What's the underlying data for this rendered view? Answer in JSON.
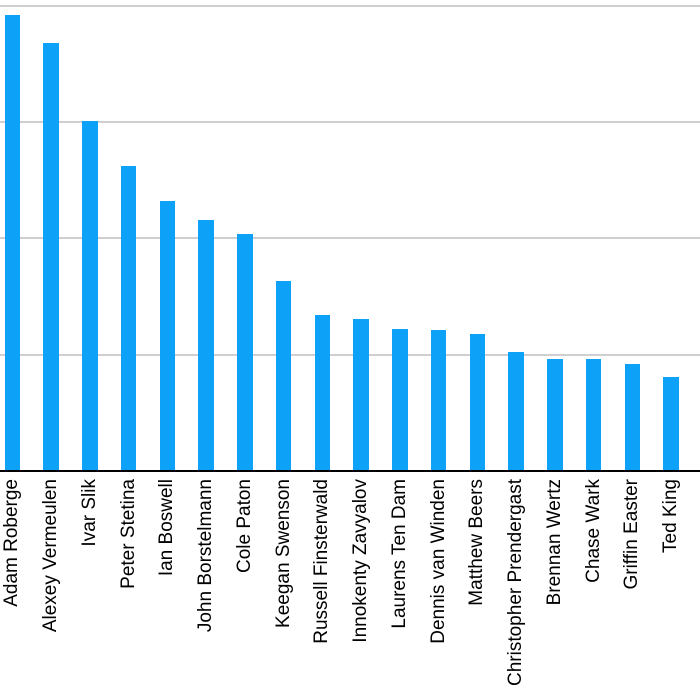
{
  "chart_data": {
    "type": "bar",
    "title": "",
    "xlabel": "",
    "ylabel": "",
    "categories": [
      "Adam Roberge",
      "Alexey Vermeulen",
      "Ivar Slik",
      "Peter Stetina",
      "Ian Boswell",
      "John Borstelmann",
      "Cole Paton",
      "Keegan Swenson",
      "Russell Finsterwald",
      "Innokenty Zavyalov",
      "Laurens Ten Dam",
      "Dennis van Winden",
      "Matthew Beers",
      "Christopher Prendergast",
      "Brennan Wertz",
      "Chase Wark",
      "Griffin Easter",
      "Ted King"
    ],
    "values": [
      3.92,
      3.68,
      3.01,
      2.62,
      2.32,
      2.16,
      2.04,
      1.63,
      1.34,
      1.31,
      1.22,
      1.21,
      1.18,
      1.02,
      0.96,
      0.96,
      0.92,
      0.81
    ],
    "values_unit": "gridline intervals (y-axis tick labels not visible in image)",
    "ylim": [
      0,
      4.03
    ],
    "gridline_values": [
      1,
      2,
      3,
      4
    ],
    "grid": true,
    "y_axis_labels_visible": false,
    "legend_position": "none",
    "x_label_rotation_deg": 90,
    "colors": {
      "bar": "#0da2f8",
      "gridline": "#cfcfcf",
      "axis": "#000000",
      "label_text": "#000000",
      "background": "#ffffff"
    }
  }
}
